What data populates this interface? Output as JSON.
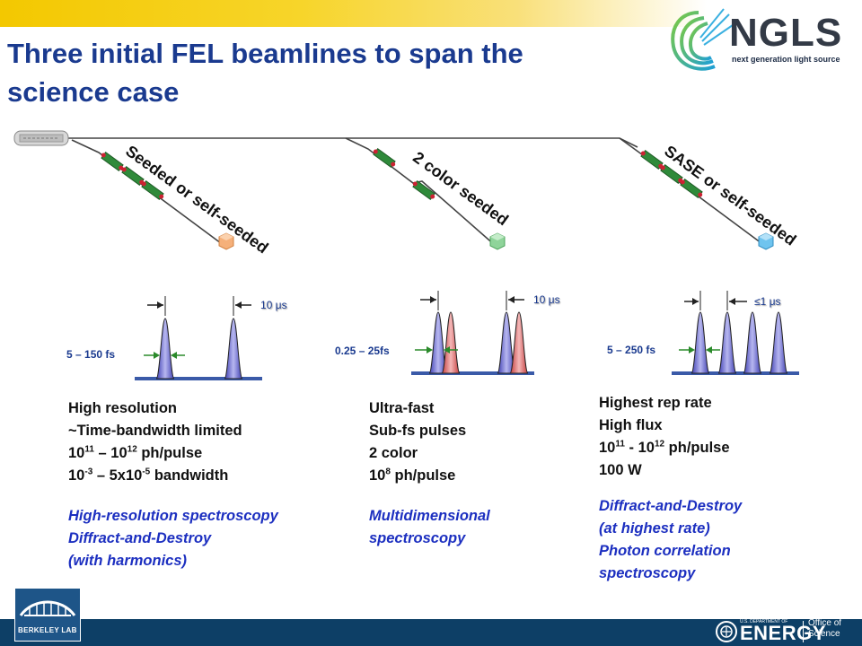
{
  "header": {
    "title_line1": "Three initial FEL beamlines to span the",
    "title_line2": "science case",
    "logo_word": "NGLS",
    "logo_sub": "next generation light source"
  },
  "beamlines": [
    {
      "label": "Seeded or self-seeded",
      "pulse_width": "5 – 150 fs",
      "spacing": "10 μs",
      "specs": [
        {
          "text": "High resolution"
        },
        {
          "text": "~Time-bandwidth limited"
        },
        {
          "pre": "10",
          "sup1": "11",
          "mid": " – 10",
          "sup2": "12",
          "post": " ph/pulse"
        },
        {
          "pre": "10",
          "sup1": "-3",
          "mid": " – 5x10",
          "sup2": "-5",
          "post": " bandwidth"
        }
      ],
      "applications": [
        "High-resolution spectroscopy",
        "Diffract-and-Destroy",
        "(with harmonics)"
      ],
      "pulse_color": "#6a6ad6"
    },
    {
      "label": "2 color seeded",
      "pulse_width": "0.25 – 25fs",
      "spacing": "10 μs",
      "specs": [
        {
          "text": "Ultra-fast"
        },
        {
          "text": "Sub-fs pulses"
        },
        {
          "text": "2 color"
        },
        {
          "pre": "10",
          "sup1": "8",
          "mid": " ph/pulse",
          "sup2": "",
          "post": ""
        }
      ],
      "applications": [
        "Multidimensional",
        "spectroscopy"
      ],
      "pulse_color": "#e06a6a"
    },
    {
      "label": "SASE or self-seeded",
      "pulse_width": "5 – 250 fs",
      "spacing": "≤1 μs",
      "specs": [
        {
          "text": "Highest rep rate"
        },
        {
          "text": "High flux"
        },
        {
          "pre": "10",
          "sup1": "11",
          "mid": " - 10",
          "sup2": "12",
          "post": " ph/pulse"
        },
        {
          "text": "100 W"
        }
      ],
      "applications": [
        "Diffract-and-Destroy",
        "(at highest rate)",
        "Photon correlation",
        "spectroscopy"
      ],
      "pulse_color": "#6a6ad6"
    }
  ],
  "footer": {
    "lab_name": "BERKELEY LAB",
    "doe_small": "U.S. DEPARTMENT OF",
    "doe_word": "ENERGY",
    "office_line1": "Office of",
    "office_line2": "Science"
  },
  "colors": {
    "title": "#1a3a8f",
    "footer_bg": "#0d3f66",
    "application_text": "#1c2fc0",
    "undulator_green": "#2f8a3a",
    "undulator_red": "#cc2233"
  }
}
